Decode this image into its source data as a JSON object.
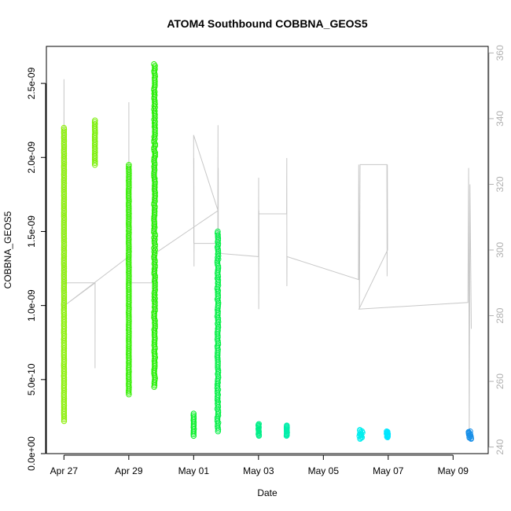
{
  "chart_data": {
    "type": "scatter",
    "title": "ATOM4 Southbound COBBNA_GEOS5",
    "xlabel": "Date",
    "ylabel": "COBBNA_GEOS5",
    "x_ticks": [
      {
        "date": "2017-04-27",
        "label": "Apr 27"
      },
      {
        "date": "2017-04-29",
        "label": "Apr 29"
      },
      {
        "date": "2017-05-01",
        "label": "May 01"
      },
      {
        "date": "2017-05-03",
        "label": "May 03"
      },
      {
        "date": "2017-05-05",
        "label": "May 05"
      },
      {
        "date": "2017-05-07",
        "label": "May 07"
      },
      {
        "date": "2017-05-09",
        "label": "May 09"
      }
    ],
    "xlim": [
      "2017-04-26T11:00",
      "2017-05-10T02:00"
    ],
    "y_ticks": [
      {
        "value": 0,
        "label": "0.0e+00"
      },
      {
        "value": 5e-10,
        "label": "5.0e-10"
      },
      {
        "value": 1e-09,
        "label": "1.0e-09"
      },
      {
        "value": 1.5e-09,
        "label": "1.5e-09"
      },
      {
        "value": 2e-09,
        "label": "2.0e-09"
      },
      {
        "value": 2.5e-09,
        "label": "2.5e-09"
      }
    ],
    "ylim": [
      0,
      2.75e-09
    ],
    "y2_ticks": [
      {
        "value": 240,
        "label": "240"
      },
      {
        "value": 260,
        "label": "260"
      },
      {
        "value": 280,
        "label": "280"
      },
      {
        "value": 300,
        "label": "300"
      },
      {
        "value": 320,
        "label": "320"
      },
      {
        "value": 340,
        "label": "340"
      },
      {
        "value": 360,
        "label": "360"
      }
    ],
    "y2lim": [
      238,
      362
    ],
    "grid": false,
    "scatter_clusters": [
      {
        "x_start": "2017-04-27T00:00",
        "x_end": "2017-04-27T00:06",
        "y_min": 2.2e-10,
        "y_max": 2.2e-09,
        "color": "#88ee00"
      },
      {
        "x_start": "2017-04-27T22:50",
        "x_end": "2017-04-27T23:00",
        "y_min": 1.95e-09,
        "y_max": 2.25e-09,
        "color": "#77ee00"
      },
      {
        "x_start": "2017-04-28T23:55",
        "x_end": "2017-04-29T00:05",
        "y_min": 4e-10,
        "y_max": 1.95e-09,
        "color": "#33ee00"
      },
      {
        "x_start": "2017-04-29T18:40",
        "x_end": "2017-04-29T19:30",
        "y_min": 4.5e-10,
        "y_max": 2.63e-09,
        "color": "#22ee00"
      },
      {
        "x_start": "2017-04-30T23:55",
        "x_end": "2017-05-01T00:10",
        "y_min": 1.2e-10,
        "y_max": 2.7e-10,
        "color": "#00ee22"
      },
      {
        "x_start": "2017-05-01T17:30",
        "x_end": "2017-05-01T18:15",
        "y_min": 1.5e-10,
        "y_max": 1.5e-09,
        "color": "#00ee44"
      },
      {
        "x_start": "2017-05-02T23:55",
        "x_end": "2017-05-03T00:20",
        "y_min": 1.2e-10,
        "y_max": 2e-10,
        "color": "#00ee88"
      },
      {
        "x_start": "2017-05-03T20:45",
        "x_end": "2017-05-03T21:05",
        "y_min": 1.2e-10,
        "y_max": 1.9e-10,
        "color": "#00eeaa"
      },
      {
        "x_start": "2017-05-06T02:40",
        "x_end": "2017-05-06T05:00",
        "y_min": 1e-10,
        "y_max": 1.6e-10,
        "color": "#00eeee"
      },
      {
        "x_start": "2017-05-06T22:50",
        "x_end": "2017-05-06T23:50",
        "y_min": 1.1e-10,
        "y_max": 1.5e-10,
        "color": "#00e6ff"
      },
      {
        "x_start": "2017-05-09T11:30",
        "x_end": "2017-05-09T14:00",
        "y_min": 1e-10,
        "y_max": 1.5e-10,
        "color": "#1a90e8"
      }
    ],
    "line_series": {
      "name": "",
      "axis": "right",
      "color": "#c8c8c8",
      "points": [
        [
          "2017-04-27T00:00",
          282
        ],
        [
          "2017-04-27T00:03",
          352
        ],
        [
          "2017-04-27T00:06",
          290
        ],
        [
          "2017-04-27T00:08",
          290
        ],
        [
          "2017-04-27T23:00",
          290
        ],
        [
          "2017-04-27T23:02",
          264
        ],
        [
          "2017-04-27T23:05",
          290
        ],
        [
          "2017-04-27T00:10",
          283
        ],
        [
          "2017-04-29T00:00",
          298
        ],
        [
          "2017-04-29T00:03",
          345
        ],
        [
          "2017-04-29T00:06",
          290
        ],
        [
          "2017-04-29T18:00",
          290
        ],
        [
          "2017-04-29T18:30",
          350
        ],
        [
          "2017-04-29T19:30",
          275
        ],
        [
          "2017-04-29T19:35",
          299
        ],
        [
          "2017-05-01T18:00",
          312
        ],
        [
          "2017-05-01T00:00",
          335
        ],
        [
          "2017-05-01T00:05",
          302
        ],
        [
          "2017-05-01T00:10",
          328
        ],
        [
          "2017-05-01T00:15",
          295
        ],
        [
          "2017-05-01T00:20",
          302
        ],
        [
          "2017-05-01T17:50",
          302
        ],
        [
          "2017-05-01T18:00",
          338
        ],
        [
          "2017-05-01T18:05",
          296
        ],
        [
          "2017-05-01T18:10",
          325
        ],
        [
          "2017-05-01T18:15",
          300
        ],
        [
          "2017-05-01T18:20",
          299
        ],
        [
          "2017-05-03T00:00",
          298
        ],
        [
          "2017-05-03T00:05",
          322
        ],
        [
          "2017-05-03T00:10",
          282
        ],
        [
          "2017-05-03T00:15",
          312
        ],
        [
          "2017-05-03T00:20",
          311
        ],
        [
          "2017-05-03T20:50",
          311
        ],
        [
          "2017-05-03T20:55",
          328
        ],
        [
          "2017-05-03T21:00",
          289
        ],
        [
          "2017-05-03T21:05",
          298
        ],
        [
          "2017-05-06T02:00",
          291
        ],
        [
          "2017-05-06T02:10",
          326
        ],
        [
          "2017-05-06T02:40",
          282
        ],
        [
          "2017-05-06T03:10",
          326
        ],
        [
          "2017-05-06T23:00",
          326
        ],
        [
          "2017-05-06T23:10",
          292
        ],
        [
          "2017-05-06T23:20",
          326
        ],
        [
          "2017-05-06T23:30",
          300
        ],
        [
          "2017-05-06T02:20",
          282
        ],
        [
          "2017-05-09T11:00",
          284
        ],
        [
          "2017-05-09T11:30",
          325
        ],
        [
          "2017-05-09T12:00",
          243
        ],
        [
          "2017-05-09T12:30",
          320
        ],
        [
          "2017-05-09T13:30",
          276
        ]
      ]
    }
  }
}
